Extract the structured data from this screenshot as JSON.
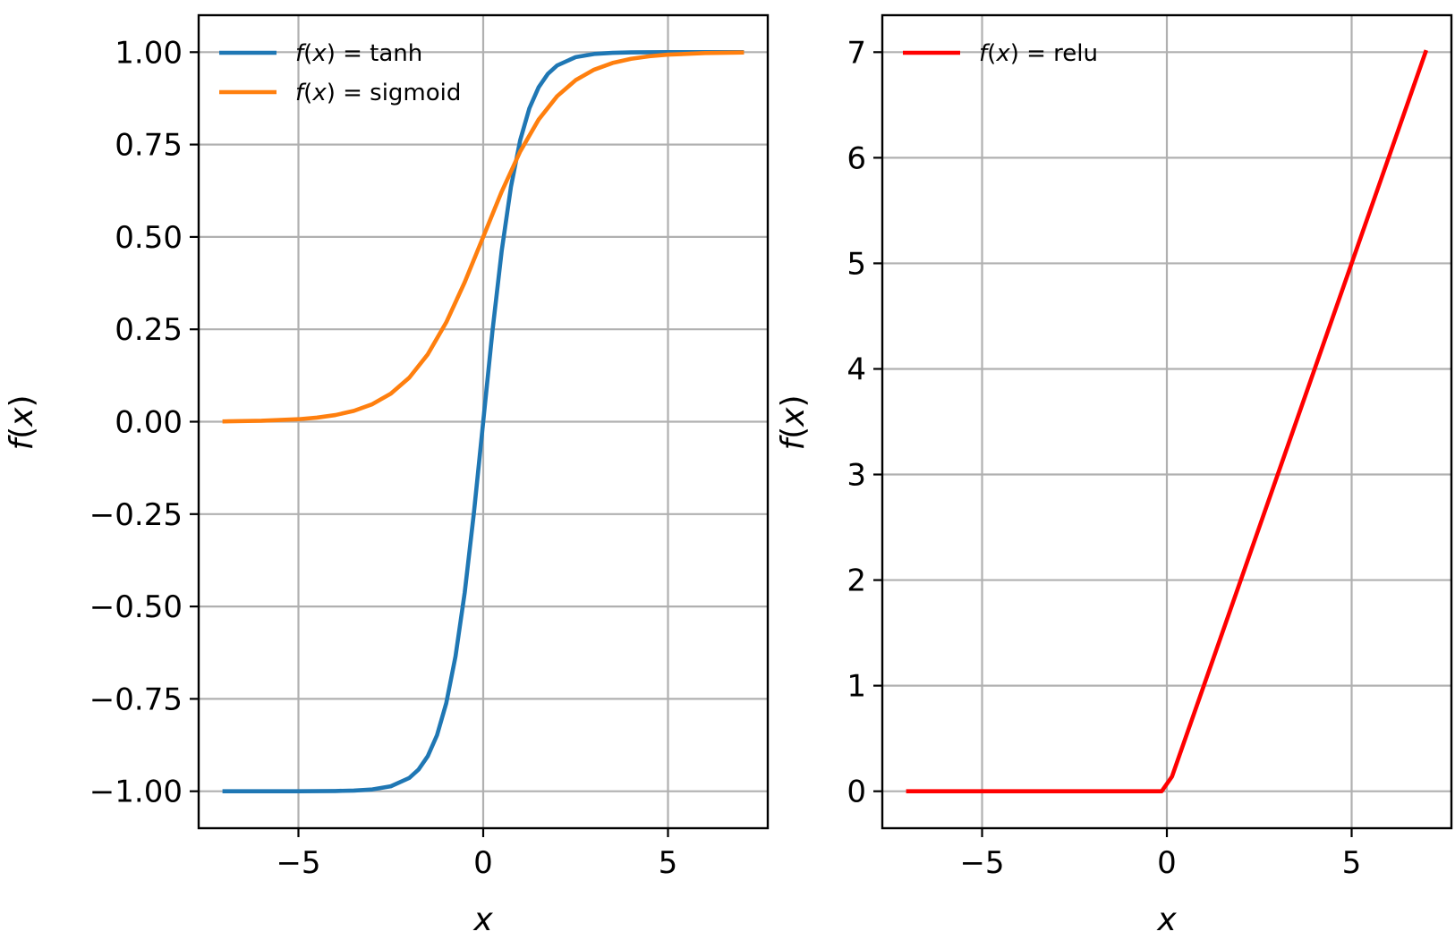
{
  "chart_data": [
    {
      "type": "line",
      "xlabel": "x",
      "ylabel": "f(x)",
      "xlim": [
        -7.7,
        7.7
      ],
      "ylim": [
        -1.1,
        1.1
      ],
      "xticks": [
        -5,
        0,
        5
      ],
      "xtick_labels": [
        "−5",
        "0",
        "5"
      ],
      "yticks": [
        -1.0,
        -0.75,
        -0.5,
        -0.25,
        0.0,
        0.25,
        0.5,
        0.75,
        1.0
      ],
      "ytick_labels": [
        "−1.00",
        "−0.75",
        "−0.50",
        "−0.25",
        "0.00",
        "0.25",
        "0.50",
        "0.75",
        "1.00"
      ],
      "grid": true,
      "legend_position": "top-left",
      "series": [
        {
          "name": "f(x) = tanh",
          "color": "#1f77b4",
          "x": [
            -7,
            -6,
            -5,
            -4,
            -3.5,
            -3,
            -2.5,
            -2,
            -1.75,
            -1.5,
            -1.25,
            -1,
            -0.75,
            -0.5,
            -0.25,
            0,
            0.25,
            0.5,
            0.75,
            1,
            1.25,
            1.5,
            1.75,
            2,
            2.5,
            3,
            3.5,
            4,
            5,
            6,
            7
          ],
          "y": [
            -1.0,
            -1.0,
            -0.9999,
            -0.9993,
            -0.9982,
            -0.9951,
            -0.9866,
            -0.964,
            -0.9414,
            -0.9051,
            -0.8483,
            -0.7616,
            -0.6351,
            -0.4621,
            -0.2449,
            0.0,
            0.2449,
            0.4621,
            0.6351,
            0.7616,
            0.8483,
            0.9051,
            0.9414,
            0.964,
            0.9866,
            0.9951,
            0.9982,
            0.9993,
            0.9999,
            1.0,
            1.0
          ]
        },
        {
          "name": "f(x) = sigmoid",
          "color": "#ff7f0e",
          "x": [
            -7,
            -6,
            -5,
            -4.5,
            -4,
            -3.5,
            -3,
            -2.5,
            -2,
            -1.5,
            -1,
            -0.5,
            0,
            0.5,
            1,
            1.5,
            2,
            2.5,
            3,
            3.5,
            4,
            4.5,
            5,
            6,
            7
          ],
          "y": [
            0.0009,
            0.0025,
            0.0067,
            0.011,
            0.018,
            0.0293,
            0.0474,
            0.0759,
            0.1192,
            0.1824,
            0.2689,
            0.3775,
            0.5,
            0.6225,
            0.7311,
            0.8176,
            0.8808,
            0.9241,
            0.9526,
            0.9707,
            0.982,
            0.989,
            0.9933,
            0.9975,
            0.9991
          ]
        }
      ]
    },
    {
      "type": "line",
      "xlabel": "x",
      "ylabel": "f(x)",
      "xlim": [
        -7.7,
        7.7
      ],
      "ylim": [
        -0.35,
        7.35
      ],
      "xticks": [
        -5,
        0,
        5
      ],
      "xtick_labels": [
        "−5",
        "0",
        "5"
      ],
      "yticks": [
        0,
        1,
        2,
        3,
        4,
        5,
        6,
        7
      ],
      "ytick_labels": [
        "0",
        "1",
        "2",
        "3",
        "4",
        "5",
        "6",
        "7"
      ],
      "grid": true,
      "legend_position": "top-left",
      "series": [
        {
          "name": "f(x) = relu",
          "color": "#ff0000",
          "x": [
            -7,
            -0.14,
            0.14,
            7
          ],
          "y": [
            0,
            0,
            0.14,
            7
          ]
        }
      ]
    }
  ]
}
